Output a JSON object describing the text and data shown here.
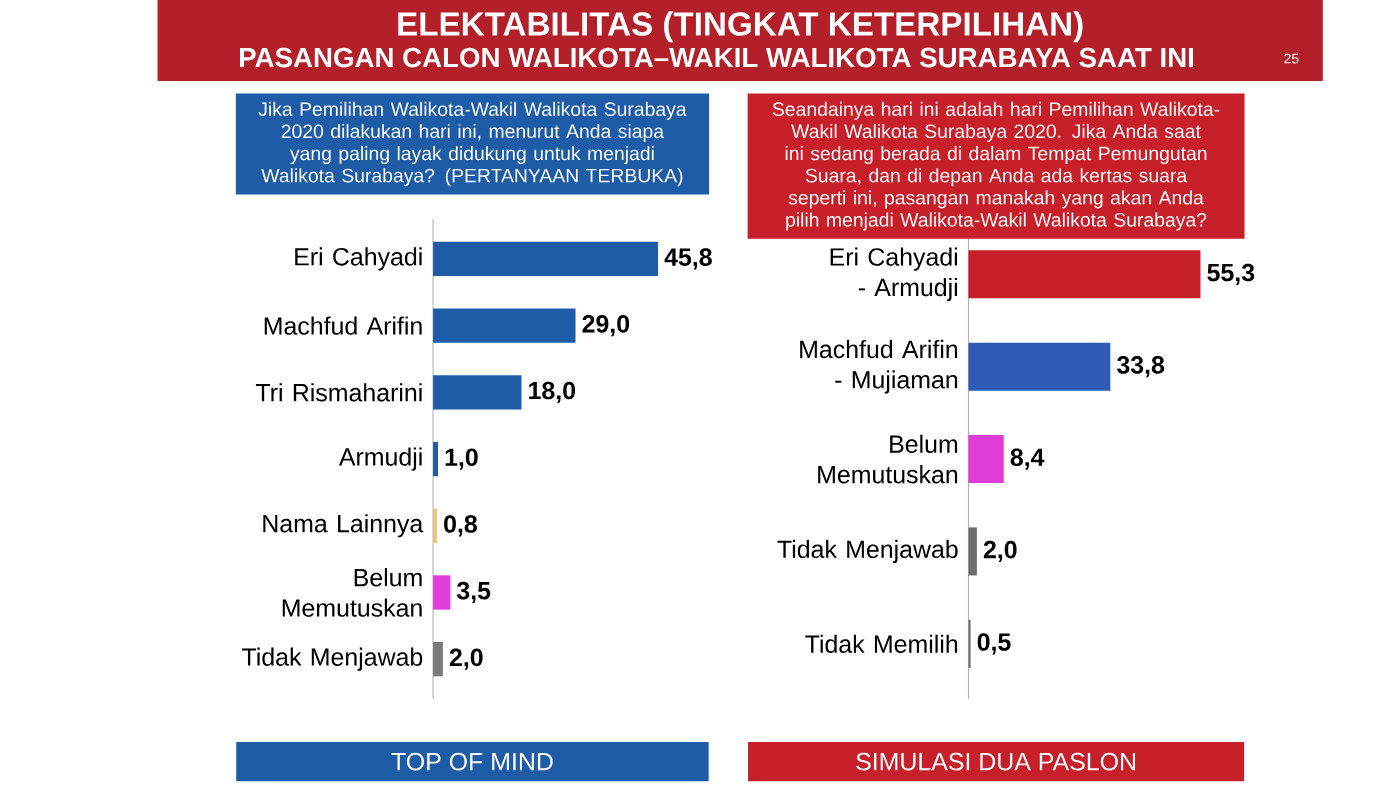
{
  "chart_data": [
    {
      "type": "bar",
      "orientation": "horizontal",
      "title": "Jika Pemilihan Walikota-Wakil Walikota Surabaya 2020 dilakukan hari ini, menurut Anda siapa yang paling layak didukung untuk menjadi Walikota Surabaya? (PERTANYAAN TERBUKA)",
      "categories": [
        "Eri Cahyadi",
        "Machfud Arifin",
        "Tri Rismaharini",
        "Armudji",
        "Nama Lainnya",
        "Belum Memutuskan",
        "Tidak Menjawab"
      ],
      "values": [
        45.8,
        29.0,
        18.0,
        1.0,
        0.8,
        3.5,
        2.0
      ],
      "value_labels": [
        "45,8",
        "29,0",
        "18,0",
        "1,0",
        "0,8",
        "3,5",
        "2,0"
      ],
      "colors": [
        "#1f5ca8",
        "#1f5ca8",
        "#1f5ca8",
        "#1f5ca8",
        "#e8c77a",
        "#e03cd8",
        "#7a7a7a"
      ],
      "annotations": [
        "ELEKTABILITAS (TINGKAT KETERPILIHAN)",
        "PASANGAN CALON WALIKOTA–WAKIL WALIKOTA SURABAYA SAAT INI",
        "25",
        "TOP OF MIND"
      ]
    },
    {
      "type": "bar",
      "orientation": "horizontal",
      "title": "Seandainya hari ini adalah hari Pemilihan Walikota-Wakil Walikota Surabaya 2020. Jika Anda saat ini sedang berada di dalam Tempat Pemungutan Suara, dan di depan Anda ada kertas suara seperti ini, pasangan manakah yang akan Anda pilih menjadi Walikota-Wakil Walikota Surabaya?",
      "categories": [
        "Eri Cahyadi - Armudji",
        "Machfud Arifin - Mujiaman",
        "Belum Memutuskan",
        "Tidak Menjawab",
        "Tidak Memilih"
      ],
      "values": [
        55.3,
        33.8,
        8.4,
        2.0,
        0.5
      ],
      "value_labels": [
        "55,3",
        "33,8",
        "8,4",
        "2,0",
        "0,5"
      ],
      "colors": [
        "#c8202a",
        "#2f5bb5",
        "#e03cd8",
        "#6e6e6e",
        "#6e6e6e"
      ],
      "annotations": [
        "SIMULASI DUA PASLON"
      ]
    }
  ]
}
